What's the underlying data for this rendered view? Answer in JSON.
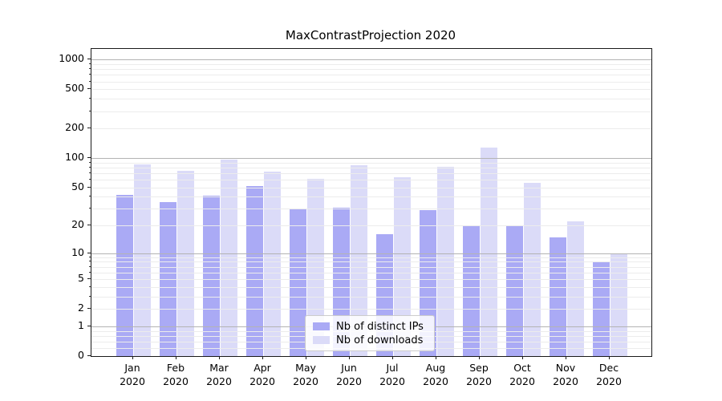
{
  "title": "MaxContrastProjection 2020",
  "chart_data": {
    "type": "bar",
    "title": "MaxContrastProjection 2020",
    "categories": [
      "Jan 2020",
      "Feb 2020",
      "Mar 2020",
      "Apr 2020",
      "May 2020",
      "Jun 2020",
      "Jul 2020",
      "Aug 2020",
      "Sep 2020",
      "Oct 2020",
      "Nov 2020",
      "Dec 2020"
    ],
    "series": [
      {
        "name": "Nb of distinct IPs",
        "color": "#aaaaf5",
        "values": [
          42,
          35,
          41,
          52,
          30,
          31,
          16,
          29,
          20,
          20,
          15,
          8
        ]
      },
      {
        "name": "Nb of downloads",
        "color": "#dbdbf8",
        "values": [
          86,
          74,
          97,
          73,
          61,
          85,
          64,
          81,
          128,
          56,
          22,
          10
        ]
      }
    ],
    "xlabel": "",
    "ylabel": "",
    "y_scale": "log1p",
    "ylim": [
      0,
      1285
    ],
    "y_ticks_labeled": [
      "0",
      "1",
      "2",
      "5",
      "10",
      "20",
      "50",
      "100",
      "200",
      "500",
      "1000"
    ],
    "y_major_gridlines": [
      1,
      10,
      100,
      1000
    ],
    "grid": "on",
    "legend_position": "lower center"
  },
  "legend": {
    "items": [
      {
        "label": "Nb of distinct IPs"
      },
      {
        "label": "Nb of downloads"
      }
    ]
  },
  "colors": {
    "series_ips": "#aaaaf5",
    "series_downloads": "#dbdbf8",
    "grid_major": "#b3b3b3",
    "grid_minor": "#ececec",
    "spine": "#1a1a1a",
    "background": "#ffffff"
  }
}
